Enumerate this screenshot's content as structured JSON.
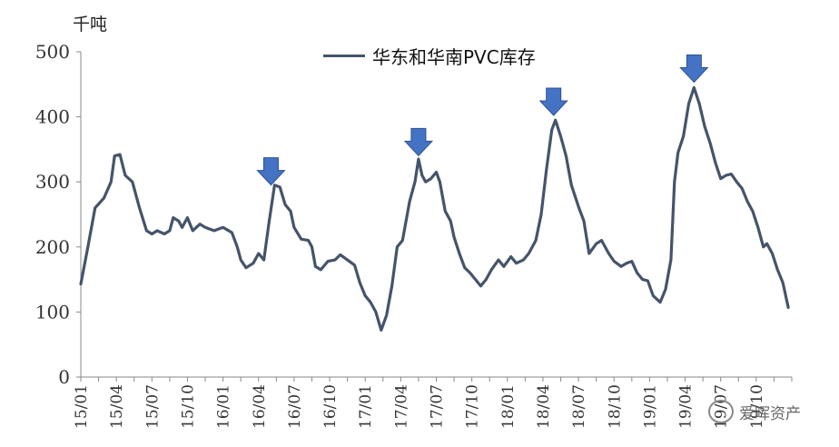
{
  "chart_data": {
    "type": "line",
    "unit_label": "千吨",
    "legend": "华东和华南PVC库存",
    "ylim": [
      0,
      500
    ],
    "yticks": [
      0,
      100,
      200,
      300,
      400,
      500
    ],
    "grid": false,
    "legend_position": "top-center",
    "x_tick_labels": [
      "15/01",
      "15/04",
      "15/07",
      "15/10",
      "16/01",
      "16/04",
      "16/07",
      "16/10",
      "17/01",
      "17/04",
      "17/07",
      "17/10",
      "18/01",
      "18/04",
      "18/07",
      "18/10",
      "19/01",
      "19/04",
      "19/07",
      "19/10"
    ],
    "series": [
      {
        "name": "华东和华南PVC库存",
        "color": "#44546a",
        "points": [
          [
            0,
            143
          ],
          [
            0.4,
            200
          ],
          [
            0.8,
            260
          ],
          [
            1.3,
            275
          ],
          [
            1.7,
            300
          ],
          [
            1.9,
            340
          ],
          [
            2.2,
            342
          ],
          [
            2.5,
            310
          ],
          [
            2.9,
            300
          ],
          [
            3.3,
            260
          ],
          [
            3.7,
            225
          ],
          [
            4.0,
            220
          ],
          [
            4.3,
            225
          ],
          [
            4.7,
            220
          ],
          [
            5.0,
            225
          ],
          [
            5.2,
            245
          ],
          [
            5.5,
            240
          ],
          [
            5.7,
            230
          ],
          [
            6.0,
            245
          ],
          [
            6.3,
            225
          ],
          [
            6.7,
            235
          ],
          [
            7.0,
            230
          ],
          [
            7.5,
            225
          ],
          [
            8.0,
            230
          ],
          [
            8.5,
            222
          ],
          [
            8.8,
            200
          ],
          [
            9.0,
            180
          ],
          [
            9.3,
            168
          ],
          [
            9.7,
            175
          ],
          [
            10.0,
            190
          ],
          [
            10.3,
            180
          ],
          [
            10.6,
            240
          ],
          [
            10.9,
            295
          ],
          [
            11.2,
            292
          ],
          [
            11.5,
            265
          ],
          [
            11.8,
            255
          ],
          [
            12.0,
            230
          ],
          [
            12.4,
            212
          ],
          [
            12.8,
            210
          ],
          [
            13.0,
            200
          ],
          [
            13.2,
            170
          ],
          [
            13.5,
            165
          ],
          [
            13.9,
            178
          ],
          [
            14.3,
            180
          ],
          [
            14.6,
            188
          ],
          [
            15.0,
            180
          ],
          [
            15.4,
            172
          ],
          [
            15.7,
            145
          ],
          [
            16.0,
            125
          ],
          [
            16.3,
            115
          ],
          [
            16.6,
            100
          ],
          [
            16.9,
            72
          ],
          [
            17.2,
            95
          ],
          [
            17.5,
            140
          ],
          [
            17.8,
            200
          ],
          [
            18.1,
            210
          ],
          [
            18.5,
            270
          ],
          [
            18.8,
            300
          ],
          [
            19.0,
            335
          ],
          [
            19.2,
            310
          ],
          [
            19.4,
            300
          ],
          [
            19.7,
            305
          ],
          [
            20.0,
            315
          ],
          [
            20.2,
            300
          ],
          [
            20.5,
            255
          ],
          [
            20.8,
            240
          ],
          [
            21.0,
            215
          ],
          [
            21.3,
            190
          ],
          [
            21.6,
            168
          ],
          [
            21.9,
            160
          ],
          [
            22.2,
            150
          ],
          [
            22.5,
            140
          ],
          [
            22.8,
            150
          ],
          [
            23.1,
            165
          ],
          [
            23.5,
            180
          ],
          [
            23.8,
            170
          ],
          [
            24.2,
            185
          ],
          [
            24.5,
            175
          ],
          [
            24.9,
            180
          ],
          [
            25.2,
            190
          ],
          [
            25.6,
            210
          ],
          [
            25.9,
            250
          ],
          [
            26.2,
            320
          ],
          [
            26.5,
            380
          ],
          [
            26.7,
            395
          ],
          [
            27.0,
            370
          ],
          [
            27.3,
            340
          ],
          [
            27.6,
            295
          ],
          [
            28.0,
            262
          ],
          [
            28.3,
            240
          ],
          [
            28.6,
            190
          ],
          [
            29.0,
            205
          ],
          [
            29.3,
            210
          ],
          [
            29.7,
            190
          ],
          [
            30.0,
            178
          ],
          [
            30.4,
            170
          ],
          [
            30.7,
            175
          ],
          [
            31.0,
            178
          ],
          [
            31.3,
            160
          ],
          [
            31.6,
            150
          ],
          [
            31.9,
            148
          ],
          [
            32.2,
            125
          ],
          [
            32.6,
            115
          ],
          [
            32.9,
            135
          ],
          [
            33.2,
            180
          ],
          [
            33.4,
            300
          ],
          [
            33.6,
            345
          ],
          [
            33.9,
            370
          ],
          [
            34.2,
            420
          ],
          [
            34.5,
            445
          ],
          [
            34.8,
            420
          ],
          [
            35.1,
            385
          ],
          [
            35.4,
            360
          ],
          [
            35.7,
            330
          ],
          [
            36.0,
            305
          ],
          [
            36.3,
            310
          ],
          [
            36.6,
            312
          ],
          [
            36.9,
            300
          ],
          [
            37.2,
            290
          ],
          [
            37.5,
            270
          ],
          [
            37.8,
            255
          ],
          [
            38.1,
            230
          ],
          [
            38.4,
            200
          ],
          [
            38.6,
            205
          ],
          [
            38.9,
            190
          ],
          [
            39.2,
            165
          ],
          [
            39.5,
            145
          ],
          [
            39.8,
            107
          ]
        ]
      }
    ],
    "annotations": [
      {
        "type": "arrow-down",
        "x": 10.7,
        "y": 298
      },
      {
        "type": "arrow-down",
        "x": 19.0,
        "y": 343
      },
      {
        "type": "arrow-down",
        "x": 26.6,
        "y": 405
      },
      {
        "type": "arrow-down",
        "x": 34.5,
        "y": 456
      }
    ]
  },
  "watermark": {
    "text": "爱晖资产",
    "icon": "wechat-icon"
  }
}
